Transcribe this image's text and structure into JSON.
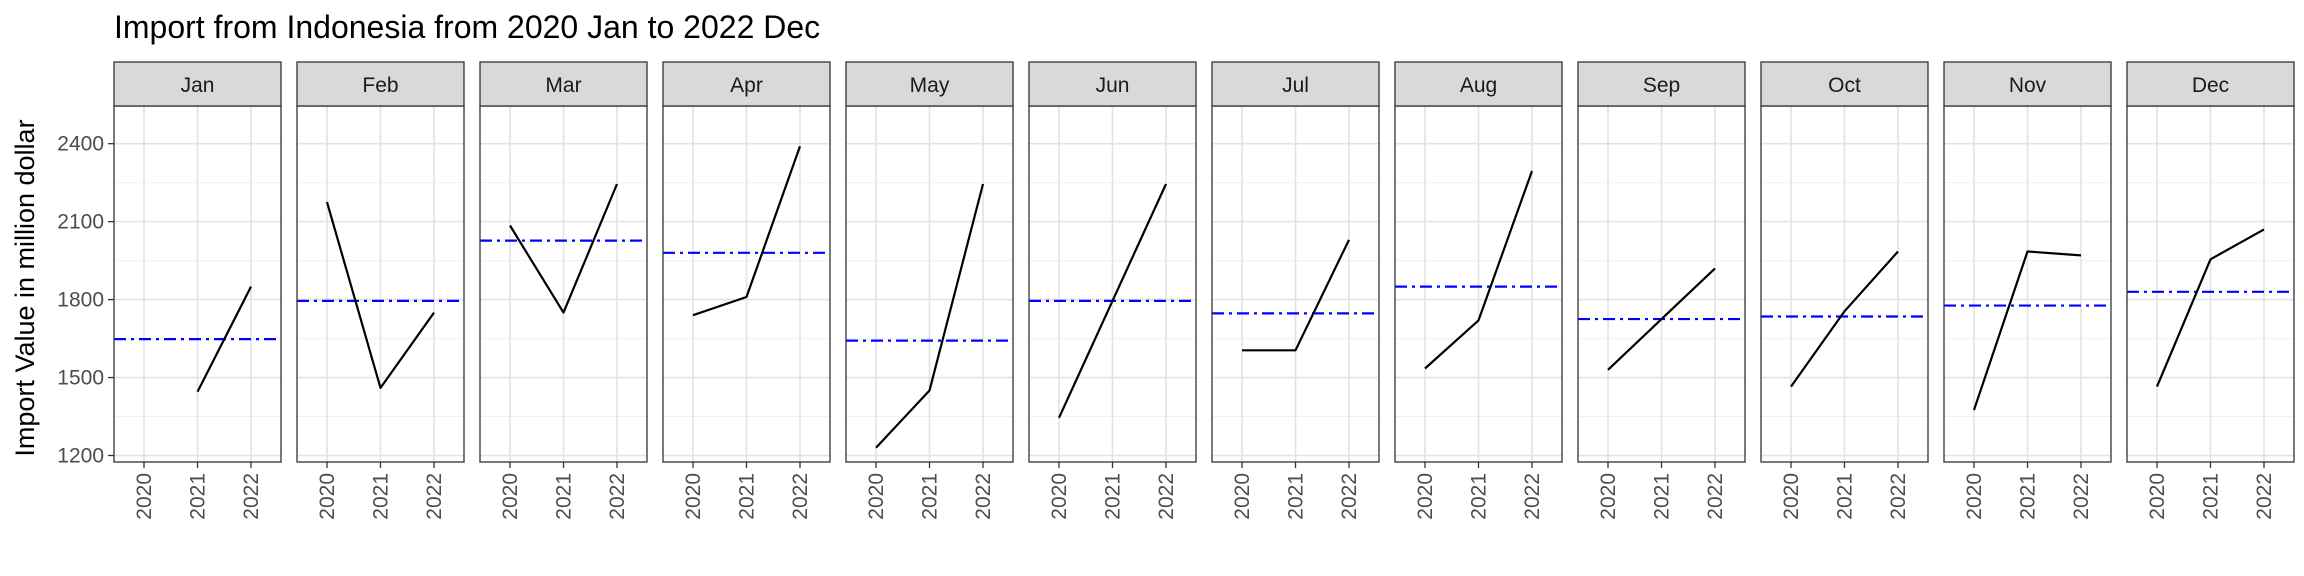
{
  "chart_data": {
    "type": "line",
    "title": "Import from Indonesia from 2020 Jan to 2022 Dec",
    "xlabel": "",
    "ylabel": "Import Value in million dollar",
    "x": [
      "2020",
      "2021",
      "2022"
    ],
    "y_ticks": [
      1200,
      1500,
      1800,
      2100,
      2400
    ],
    "ylim": [
      1175,
      2545
    ],
    "grid": true,
    "facets": [
      {
        "label": "Jan",
        "values": [
          null,
          1445,
          1850
        ],
        "mean": 1648
      },
      {
        "label": "Feb",
        "values": [
          2175,
          1460,
          1750
        ],
        "mean": 1795
      },
      {
        "label": "Mar",
        "values": [
          2085,
          1750,
          2245
        ],
        "mean": 2027
      },
      {
        "label": "Apr",
        "values": [
          1740,
          1810,
          2390
        ],
        "mean": 1980
      },
      {
        "label": "May",
        "values": [
          1230,
          1450,
          2245
        ],
        "mean": 1642
      },
      {
        "label": "Jun",
        "values": [
          1345,
          null,
          2245
        ],
        "mean": 1795
      },
      {
        "label": "Jul",
        "values": [
          1605,
          1605,
          2030
        ],
        "mean": 1747
      },
      {
        "label": "Aug",
        "values": [
          1535,
          1720,
          2295
        ],
        "mean": 1850
      },
      {
        "label": "Sep",
        "values": [
          1530,
          1725,
          1920
        ],
        "mean": 1725
      },
      {
        "label": "Oct",
        "values": [
          1465,
          1755,
          1985
        ],
        "mean": 1735
      },
      {
        "label": "Nov",
        "values": [
          1375,
          1985,
          1970
        ],
        "mean": 1777
      },
      {
        "label": "Dec",
        "values": [
          1465,
          1955,
          2070
        ],
        "mean": 1830
      }
    ],
    "line_color": "#000000",
    "mean_line_color": "#0000ff",
    "mean_line_style": "dot-dash"
  }
}
